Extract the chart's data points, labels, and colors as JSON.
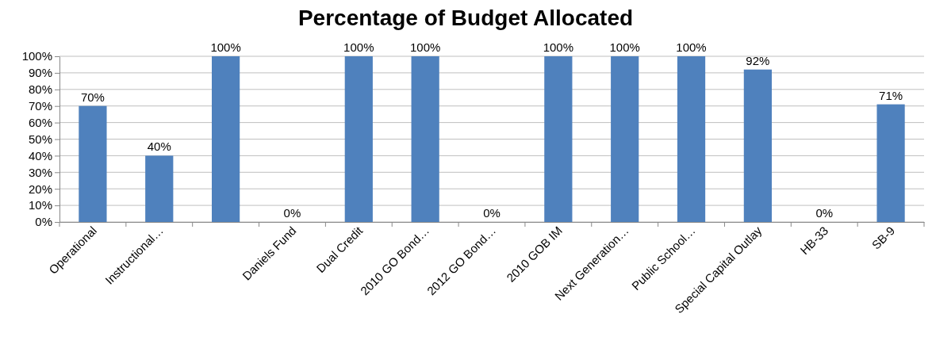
{
  "chart_data": {
    "type": "bar",
    "title": "Percentage of Budget Allocated",
    "categories": [
      "Operational",
      "Instructional…",
      null,
      "Daniels Fund",
      "Dual Credit",
      "2010 GO Bond…",
      "2012 GO Bond…",
      "2010 GOB IM",
      "Next Generation…",
      "Public School…",
      "Special Capital Outlay",
      "HB-33",
      "SB-9"
    ],
    "values": [
      70,
      40,
      100,
      0,
      100,
      100,
      0,
      100,
      100,
      100,
      92,
      0,
      71
    ],
    "color": "#4f81bd",
    "ylim": [
      0,
      100
    ],
    "yticks": [
      {
        "value": 0,
        "label": "0%"
      },
      {
        "value": 10,
        "label": "10%"
      },
      {
        "value": 20,
        "label": "20%"
      },
      {
        "value": 30,
        "label": "30%"
      },
      {
        "value": 40,
        "label": "40%"
      },
      {
        "value": 50,
        "label": "50%"
      },
      {
        "value": 60,
        "label": "60%"
      },
      {
        "value": 70,
        "label": "70%"
      },
      {
        "value": 80,
        "label": "80%"
      },
      {
        "value": 90,
        "label": "90%"
      },
      {
        "value": 100,
        "label": "100%"
      }
    ],
    "value_labels": [
      "70%",
      "40%",
      "100%",
      "0%",
      "100%",
      "100%",
      "0%",
      "100%",
      "100%",
      "100%",
      "92%",
      "0%",
      "71%"
    ],
    "grid": "y"
  }
}
